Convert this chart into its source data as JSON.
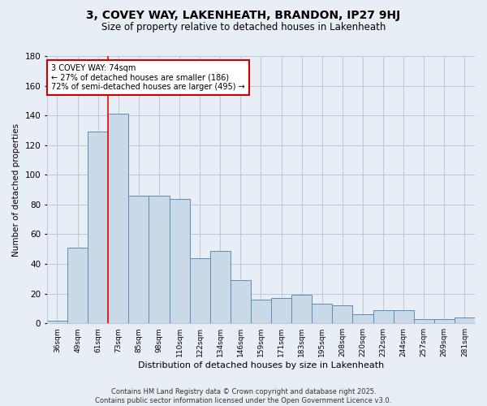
{
  "title1": "3, COVEY WAY, LAKENHEATH, BRANDON, IP27 9HJ",
  "title2": "Size of property relative to detached houses in Lakenheath",
  "xlabel": "Distribution of detached houses by size in Lakenheath",
  "ylabel": "Number of detached properties",
  "categories": [
    "36sqm",
    "49sqm",
    "61sqm",
    "73sqm",
    "85sqm",
    "98sqm",
    "110sqm",
    "122sqm",
    "134sqm",
    "146sqm",
    "159sqm",
    "171sqm",
    "183sqm",
    "195sqm",
    "208sqm",
    "220sqm",
    "232sqm",
    "244sqm",
    "257sqm",
    "269sqm",
    "281sqm"
  ],
  "values": [
    2,
    51,
    129,
    141,
    86,
    86,
    84,
    44,
    49,
    29,
    16,
    17,
    19,
    13,
    12,
    6,
    9,
    9,
    3,
    3,
    4
  ],
  "bar_color": "#c9d9e8",
  "bar_edge_color": "#5b8db8",
  "grid_color": "#c0c8d8",
  "background_color": "#e8eef5",
  "red_line_index": 3,
  "annotation_text": "3 COVEY WAY: 74sqm\n← 27% of detached houses are smaller (186)\n72% of semi-detached houses are larger (495) →",
  "annotation_box_color": "#ffffff",
  "annotation_box_edge_color": "#cc0000",
  "footer1": "Contains HM Land Registry data © Crown copyright and database right 2025.",
  "footer2": "Contains public sector information licensed under the Open Government Licence v3.0.",
  "ylim": [
    0,
    180
  ],
  "yticks": [
    0,
    20,
    40,
    60,
    80,
    100,
    120,
    140,
    160,
    180
  ]
}
